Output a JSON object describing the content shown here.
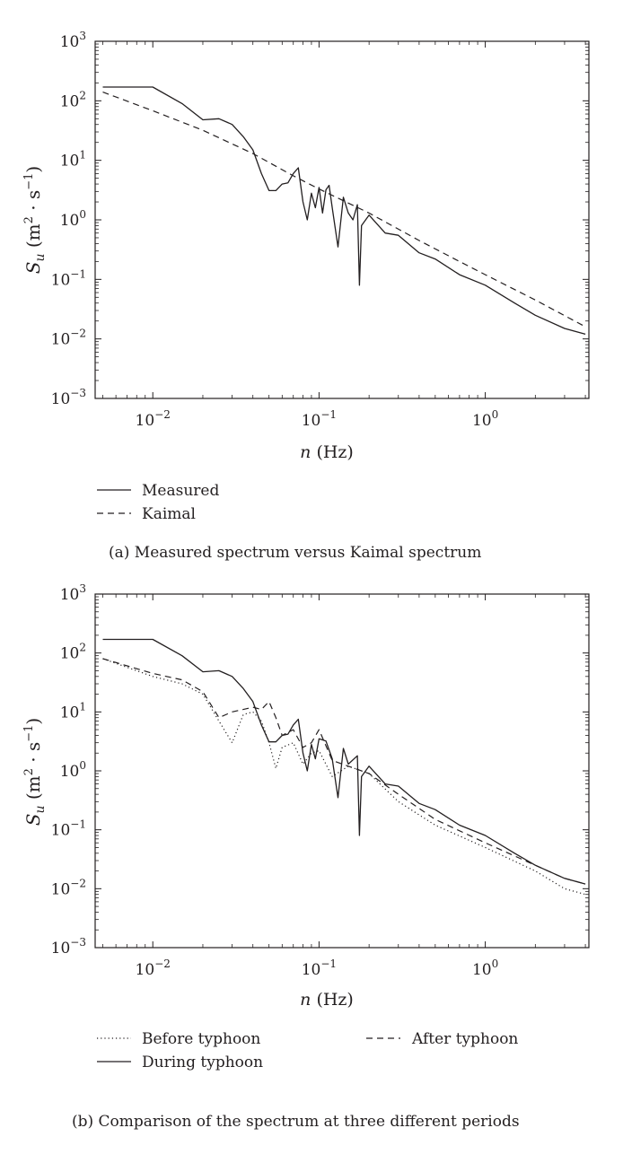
{
  "colors": {
    "ink": "#231f20",
    "frame": "#231f20",
    "background": "#ffffff"
  },
  "chart_data": [
    {
      "id": "panel-a",
      "type": "line",
      "scale": "log-log",
      "caption": "(a)  Measured spectrum versus Kaimal spectrum",
      "xlabel_italic": "n",
      "xlabel_unit": "(Hz)",
      "ylabel": "Su (m2 · s−1)",
      "xlim": [
        0.0045,
        4.2
      ],
      "ylim": [
        0.001,
        1000
      ],
      "x_ticks": [
        {
          "value": 0.01,
          "base": "10",
          "exp": "−2"
        },
        {
          "value": 0.1,
          "base": "10",
          "exp": "−1"
        },
        {
          "value": 1,
          "base": "10",
          "exp": "0"
        }
      ],
      "y_ticks": [
        {
          "value": 0.001,
          "base": "10",
          "exp": "−3"
        },
        {
          "value": 0.01,
          "base": "10",
          "exp": "−2"
        },
        {
          "value": 0.1,
          "base": "10",
          "exp": "−1"
        },
        {
          "value": 1,
          "base": "10",
          "exp": "0"
        },
        {
          "value": 10,
          "base": "10",
          "exp": "1"
        },
        {
          "value": 100,
          "base": "10",
          "exp": "2"
        },
        {
          "value": 1000,
          "base": "10",
          "exp": "3"
        }
      ],
      "legend": {
        "placement": "below-left",
        "items": [
          "Measured",
          "Kaimal"
        ]
      },
      "series": [
        {
          "name": "Measured",
          "style": "solid",
          "x": [
            0.005,
            0.01,
            0.015,
            0.02,
            0.025,
            0.03,
            0.035,
            0.04,
            0.045,
            0.05,
            0.055,
            0.06,
            0.065,
            0.07,
            0.075,
            0.08,
            0.085,
            0.09,
            0.095,
            0.1,
            0.105,
            0.11,
            0.115,
            0.12,
            0.13,
            0.14,
            0.15,
            0.16,
            0.17,
            0.175,
            0.18,
            0.2,
            0.25,
            0.3,
            0.4,
            0.5,
            0.7,
            1.0,
            1.5,
            2.0,
            3.0,
            4.0
          ],
          "y": [
            170,
            170,
            90,
            48,
            50,
            40,
            25,
            15,
            6,
            3.1,
            3.1,
            4,
            4.2,
            6,
            7.5,
            2,
            1.0,
            2.8,
            1.6,
            3.5,
            1.3,
            3.2,
            3.8,
            1.6,
            0.35,
            2.4,
            1.3,
            1.0,
            1.8,
            0.08,
            0.8,
            1.2,
            0.6,
            0.55,
            0.28,
            0.22,
            0.12,
            0.08,
            0.04,
            0.025,
            0.015,
            0.012
          ]
        },
        {
          "name": "Kaimal",
          "style": "dashed",
          "x": [
            0.005,
            0.01,
            0.02,
            0.04,
            0.07,
            0.1,
            0.2,
            0.4,
            0.7,
            1.0,
            2.0,
            4.0
          ],
          "y": [
            140,
            68,
            32,
            13,
            5.5,
            3.3,
            1.3,
            0.45,
            0.2,
            0.12,
            0.045,
            0.016
          ]
        }
      ]
    },
    {
      "id": "panel-b",
      "type": "line",
      "scale": "log-log",
      "caption": "(b)  Comparison of the spectrum at three different periods",
      "xlabel_italic": "n",
      "xlabel_unit": "(Hz)",
      "ylabel": "Su (m2 · s−1)",
      "xlim": [
        0.0045,
        4.2
      ],
      "ylim": [
        0.001,
        1000
      ],
      "x_ticks": [
        {
          "value": 0.01,
          "base": "10",
          "exp": "−2"
        },
        {
          "value": 0.1,
          "base": "10",
          "exp": "−1"
        },
        {
          "value": 1,
          "base": "10",
          "exp": "0"
        }
      ],
      "y_ticks": [
        {
          "value": 0.001,
          "base": "10",
          "exp": "−3"
        },
        {
          "value": 0.01,
          "base": "10",
          "exp": "−2"
        },
        {
          "value": 0.1,
          "base": "10",
          "exp": "−1"
        },
        {
          "value": 1,
          "base": "10",
          "exp": "0"
        },
        {
          "value": 10,
          "base": "10",
          "exp": "1"
        },
        {
          "value": 100,
          "base": "10",
          "exp": "2"
        },
        {
          "value": 1000,
          "base": "10",
          "exp": "3"
        }
      ],
      "legend": {
        "placement": "below",
        "items": [
          "Before typhoon",
          "After typhoon",
          "During typhoon"
        ]
      },
      "series": [
        {
          "name": "Before typhoon",
          "style": "dotted",
          "x": [
            0.005,
            0.01,
            0.015,
            0.02,
            0.025,
            0.03,
            0.035,
            0.04,
            0.045,
            0.05,
            0.055,
            0.06,
            0.07,
            0.08,
            0.09,
            0.1,
            0.12,
            0.15,
            0.2,
            0.3,
            0.5,
            1.0,
            2.0,
            3.0,
            4.0
          ],
          "y": [
            80,
            40,
            30,
            20,
            7,
            3.0,
            9,
            10,
            7,
            3,
            1.1,
            2.5,
            3.0,
            1.3,
            2.0,
            2.2,
            0.8,
            1.2,
            0.9,
            0.3,
            0.12,
            0.05,
            0.02,
            0.01,
            0.008
          ]
        },
        {
          "name": "After typhoon",
          "style": "dashed",
          "x": [
            0.005,
            0.01,
            0.015,
            0.02,
            0.025,
            0.03,
            0.035,
            0.04,
            0.045,
            0.05,
            0.055,
            0.06,
            0.07,
            0.08,
            0.09,
            0.1,
            0.12,
            0.15,
            0.2,
            0.3,
            0.5,
            1.0,
            2.0,
            3.0,
            4.0
          ],
          "y": [
            80,
            45,
            35,
            22,
            8,
            10,
            11,
            12,
            11,
            15,
            8,
            4,
            5,
            2.5,
            3,
            5,
            1.5,
            1.2,
            0.9,
            0.4,
            0.15,
            0.06,
            0.025,
            0.015,
            0.012
          ]
        },
        {
          "name": "During typhoon",
          "style": "solid",
          "x": [
            0.005,
            0.01,
            0.015,
            0.02,
            0.025,
            0.03,
            0.035,
            0.04,
            0.045,
            0.05,
            0.055,
            0.06,
            0.065,
            0.07,
            0.075,
            0.08,
            0.085,
            0.09,
            0.095,
            0.1,
            0.11,
            0.12,
            0.13,
            0.14,
            0.15,
            0.17,
            0.175,
            0.18,
            0.2,
            0.25,
            0.3,
            0.4,
            0.5,
            0.7,
            1.0,
            1.5,
            2.0,
            3.0,
            4.0
          ],
          "y": [
            170,
            170,
            90,
            48,
            50,
            40,
            25,
            15,
            6,
            3.1,
            3.1,
            4,
            4.2,
            6,
            7.5,
            2,
            1.0,
            2.8,
            1.6,
            3.5,
            3.2,
            1.6,
            0.35,
            2.4,
            1.3,
            1.8,
            0.08,
            0.8,
            1.2,
            0.6,
            0.55,
            0.28,
            0.22,
            0.12,
            0.08,
            0.04,
            0.025,
            0.015,
            0.012
          ]
        }
      ]
    }
  ]
}
